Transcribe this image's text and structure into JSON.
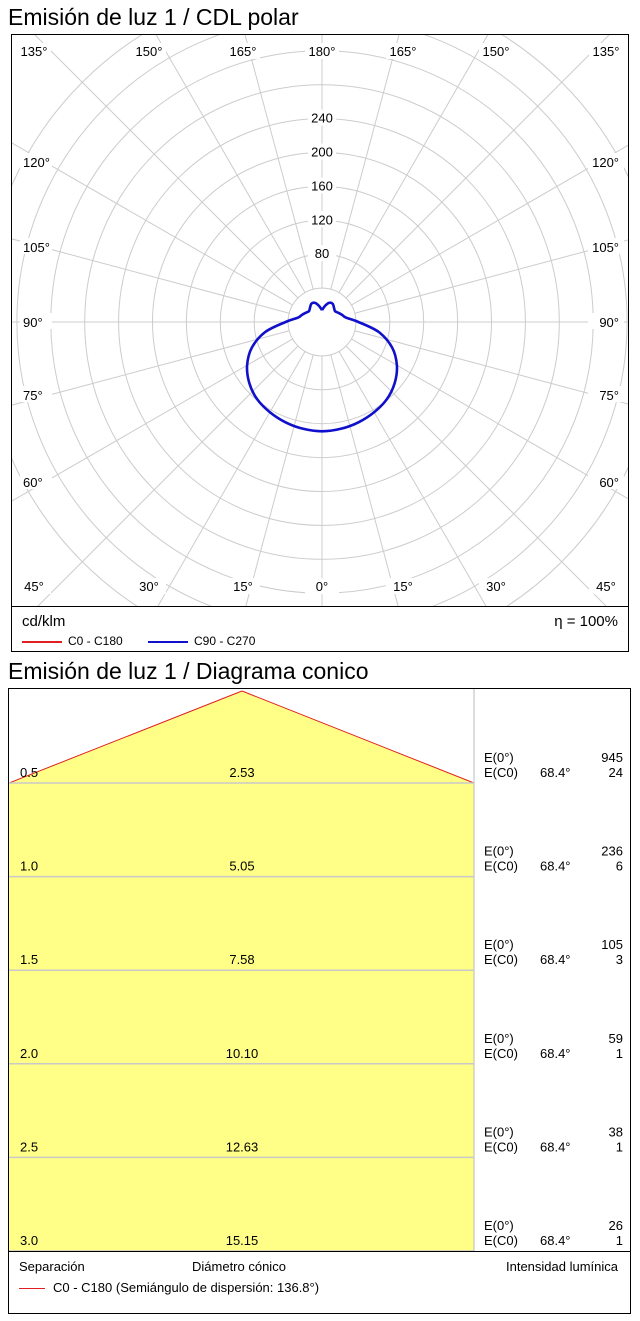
{
  "polar": {
    "title": "Emisión de luz 1 / CDL polar",
    "unit": "cd/klm",
    "efficiency": "η = 100%",
    "legend": [
      {
        "label": "C0 - C180",
        "color": "#e02020"
      },
      {
        "label": "C90 - C270",
        "color": "#1010cc"
      }
    ]
  },
  "cone": {
    "title": "Emisión de luz 1 / Diagrama conico",
    "footer": {
      "separation": "Separación",
      "diameter": "Diámetro cónico",
      "intensity": "Intensidad lumínica"
    },
    "legend_label": "C0 - C180 (Semiángulo de dispersión: 136.8°)",
    "legend_color": "#e02020",
    "fill_color": "#ffff88"
  },
  "chart_data": [
    {
      "type": "polar",
      "title": "Emisión de luz 1 / CDL polar",
      "unit": "cd/klm",
      "radial_ticks": [
        80,
        120,
        160,
        200,
        240
      ],
      "r_max": 240,
      "angle_labels_top": [
        "135°",
        "150°",
        "165°",
        "180°",
        "165°",
        "150°",
        "135°"
      ],
      "angle_labels_side": [
        "120°",
        "105°",
        "90°",
        "75°",
        "60°"
      ],
      "angle_labels_bottom": [
        "45°",
        "30°",
        "15°",
        "0°",
        "15°",
        "30°",
        "45°"
      ],
      "series": [
        {
          "name": "C0 - C180",
          "color": "#e02020",
          "gammas": [],
          "values": []
        },
        {
          "name": "C90 - C270",
          "color": "#1010cc",
          "gammas": [
            0,
            10,
            20,
            30,
            40,
            50,
            60,
            70,
            80,
            90,
            100,
            110,
            120,
            130,
            140,
            150,
            160,
            170,
            180
          ],
          "values": [
            129,
            128,
            126,
            123,
            119,
            112,
            102,
            88,
            68,
            43,
            29,
            25,
            22,
            20,
            22,
            25,
            24,
            19,
            14
          ]
        }
      ]
    },
    {
      "type": "table",
      "title": "Emisión de luz 1 / Diagrama conico",
      "half_angle": "136.8°",
      "rows": [
        {
          "distance": "0.5",
          "diameter": "2.53",
          "e0": "945",
          "ec0": "24",
          "angle": "68.4°"
        },
        {
          "distance": "1.0",
          "diameter": "5.05",
          "e0": "236",
          "ec0": "6",
          "angle": "68.4°"
        },
        {
          "distance": "1.5",
          "diameter": "7.58",
          "e0": "105",
          "ec0": "3",
          "angle": "68.4°"
        },
        {
          "distance": "2.0",
          "diameter": "10.10",
          "e0": "59",
          "ec0": "1",
          "angle": "68.4°"
        },
        {
          "distance": "2.5",
          "diameter": "12.63",
          "e0": "38",
          "ec0": "1",
          "angle": "68.4°"
        },
        {
          "distance": "3.0",
          "diameter": "15.15",
          "e0": "26",
          "ec0": "1",
          "angle": "68.4°"
        }
      ],
      "row_labels": {
        "e0": "E(0°)",
        "ec0": "E(C0)"
      }
    }
  ]
}
